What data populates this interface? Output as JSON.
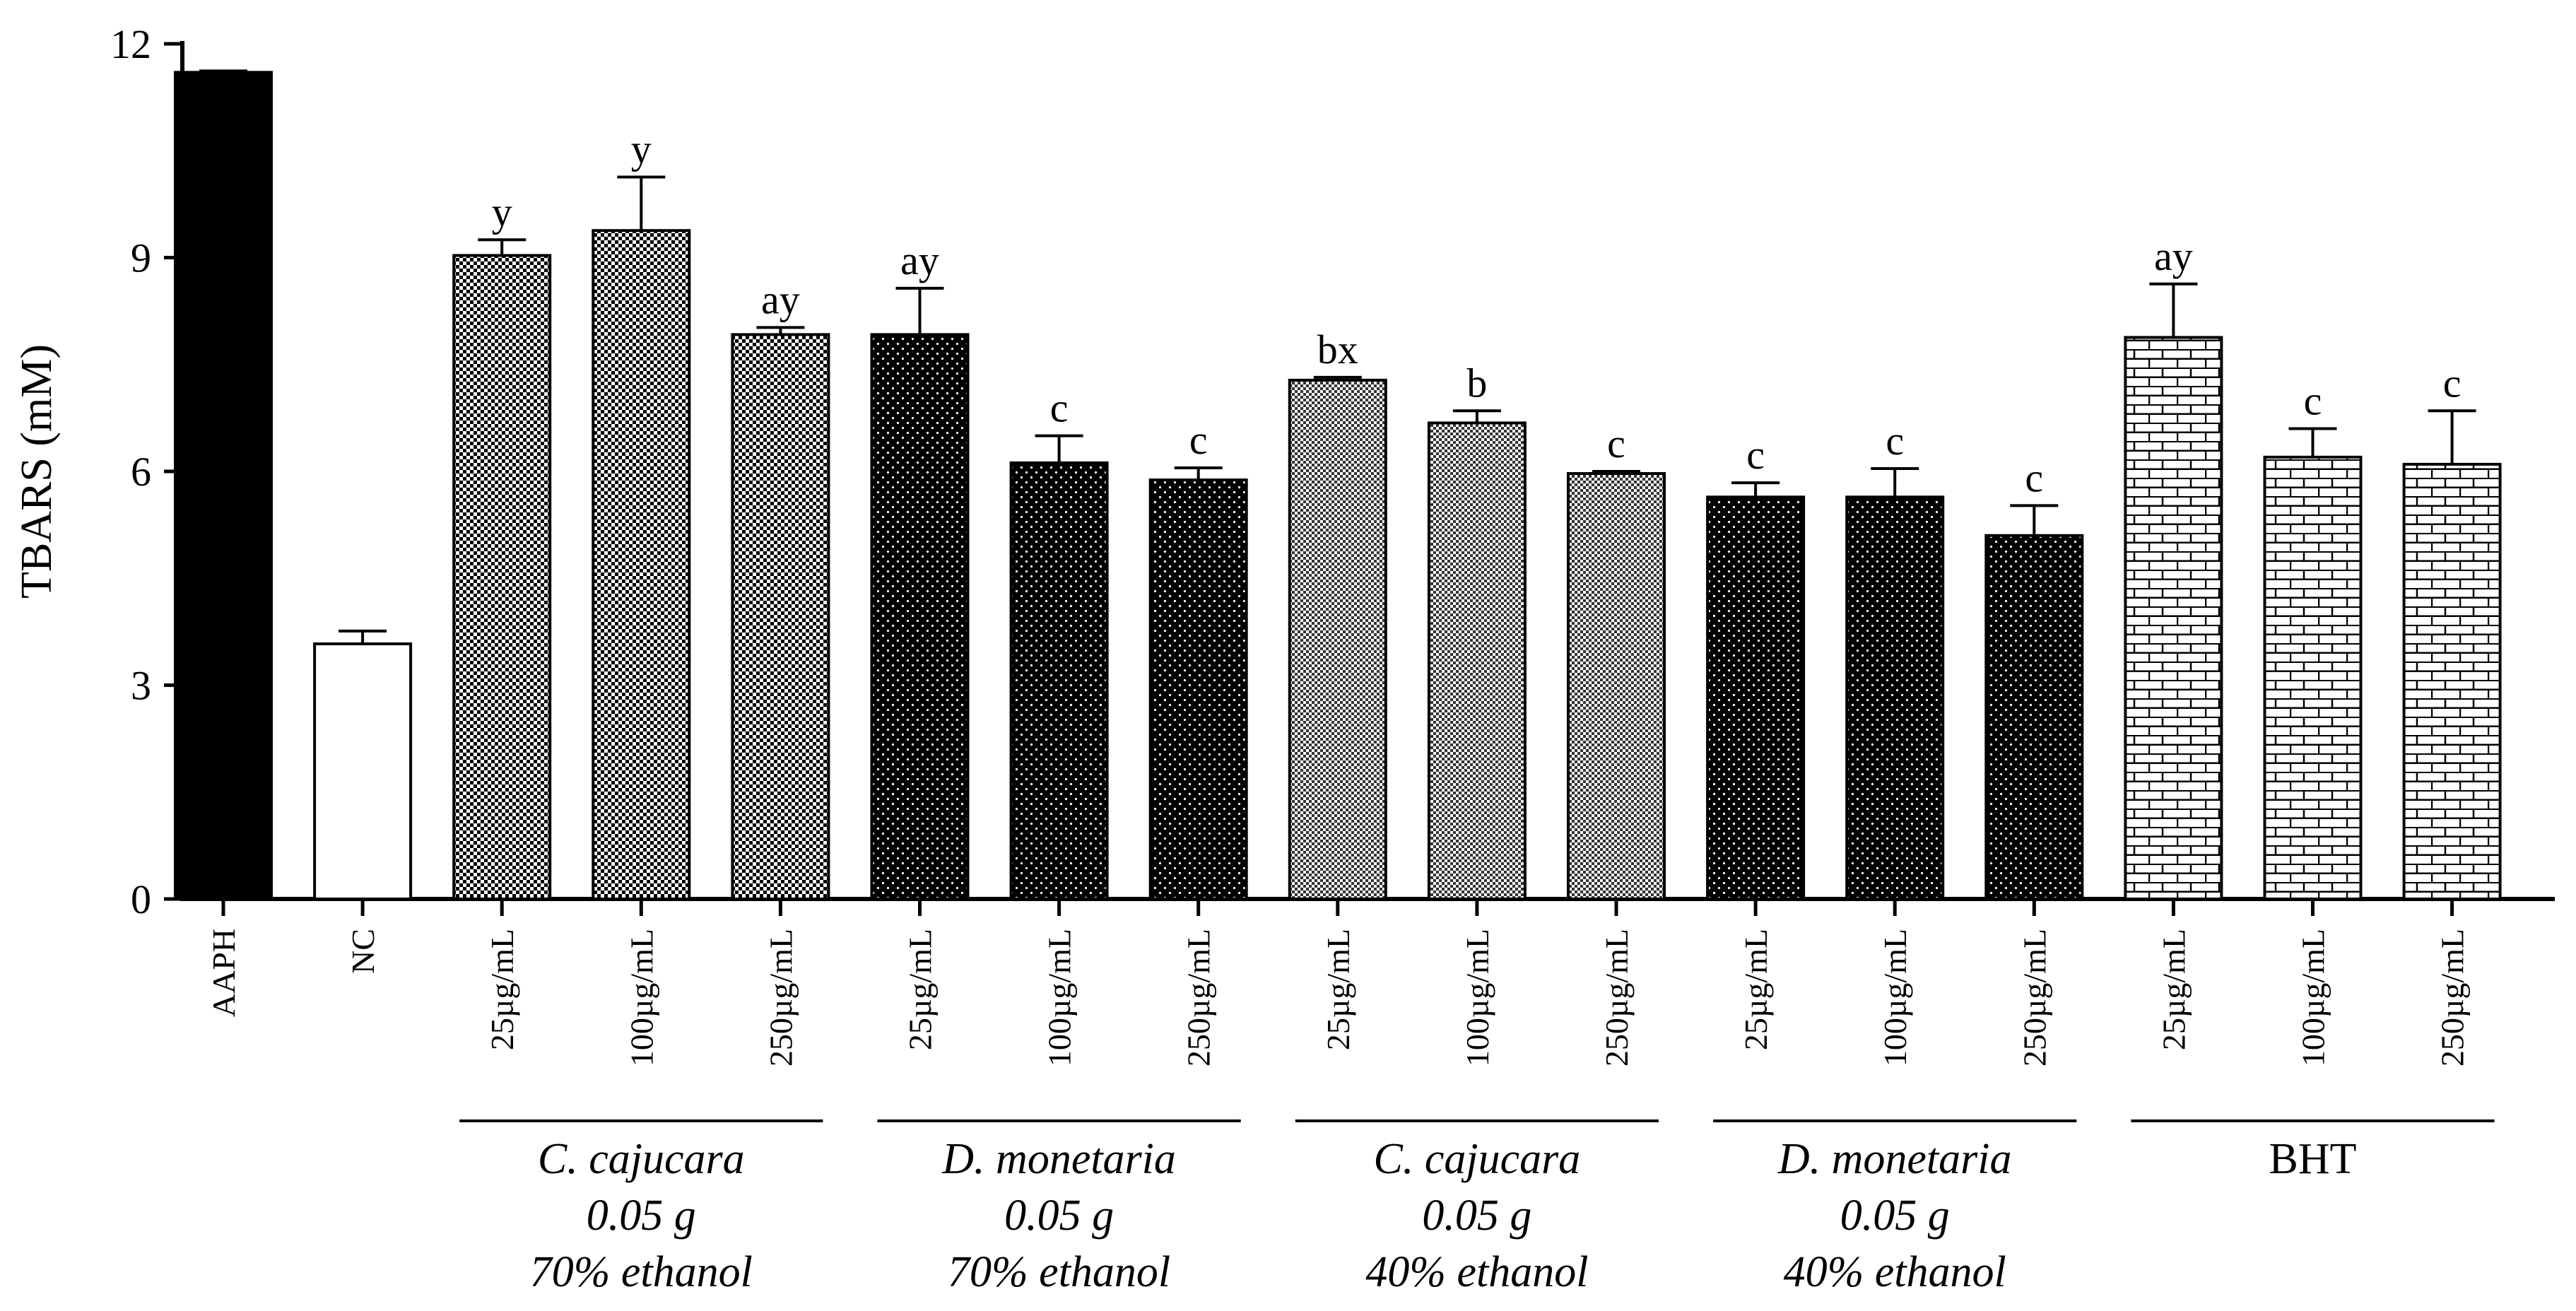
{
  "chart_data": {
    "type": "bar",
    "title": "",
    "xlabel": "",
    "ylabel": "TBARS (mM)",
    "ylim": [
      0,
      12
    ],
    "yticks": [
      0,
      3,
      6,
      9,
      12
    ],
    "grid": false,
    "categories": [
      "AAPH",
      "NC",
      "25µg/mL",
      "100µg/mL",
      "250µg/mL",
      "25µg/mL",
      "100µg/mL",
      "250µg/mL",
      "25µg/mL",
      "100µg/mL",
      "250µg/mL",
      "25µg/mL",
      "100µg/mL",
      "250µg/mL",
      "25µg/mL",
      "100µg/mL",
      "250µg/mL"
    ],
    "values": [
      11.6,
      3.58,
      9.03,
      9.38,
      7.92,
      7.92,
      6.12,
      5.88,
      7.28,
      6.68,
      5.97,
      5.64,
      5.64,
      5.1,
      7.88,
      6.2,
      6.1
    ],
    "errors": [
      0.02,
      0.18,
      0.22,
      0.75,
      0.1,
      0.65,
      0.38,
      0.17,
      0.04,
      0.17,
      0.03,
      0.2,
      0.4,
      0.42,
      0.75,
      0.4,
      0.75
    ],
    "significance_labels": [
      "",
      "",
      "y",
      "y",
      "ay",
      "ay",
      "c",
      "c",
      "bx",
      "b",
      "c",
      "c",
      "c",
      "c",
      "ay",
      "c",
      "c"
    ],
    "fills": [
      "solid-black",
      "white",
      "checker",
      "checker",
      "checker",
      "dots",
      "dots",
      "dots",
      "fine-checker",
      "fine-checker",
      "fine-checker",
      "dots",
      "dots",
      "dots",
      "brick",
      "brick",
      "brick"
    ],
    "groups": [
      {
        "start": 2,
        "end": 4,
        "lines": [
          "C. cajucara",
          "0.05 g",
          "70% ethanol"
        ],
        "italic": true
      },
      {
        "start": 5,
        "end": 7,
        "lines": [
          "D. monetaria",
          "0.05 g",
          "70% ethanol"
        ],
        "italic": true
      },
      {
        "start": 8,
        "end": 10,
        "lines": [
          "C. cajucara",
          "0.05 g",
          "40% ethanol"
        ],
        "italic": true
      },
      {
        "start": 11,
        "end": 13,
        "lines": [
          "D. monetaria",
          "0.05 g",
          "40% ethanol"
        ],
        "italic": true
      },
      {
        "start": 14,
        "end": 16,
        "lines": [
          "BHT"
        ],
        "italic": false
      }
    ]
  }
}
